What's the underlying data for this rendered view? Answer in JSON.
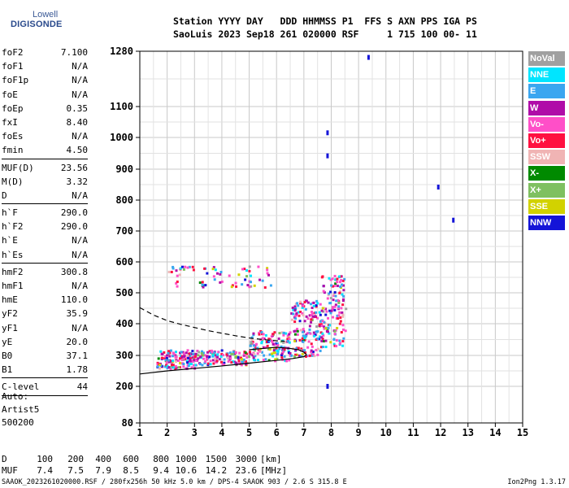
{
  "logo": {
    "top": "Lowell",
    "bottom": "DIGISONDE"
  },
  "header": {
    "line1": "Station YYYY DAY   DDD HHMMSS P1  FFS S AXN PPS IGA PS",
    "line2": "SaoLuis 2023 Sep18 261 020000 RSF     1 715 100 00- 11"
  },
  "params": [
    {
      "k": "foF2",
      "v": "7.100"
    },
    {
      "k": "foF1",
      "v": "N/A"
    },
    {
      "k": "foF1p",
      "v": "N/A"
    },
    {
      "k": "foE",
      "v": "N/A"
    },
    {
      "k": "foEp",
      "v": "0.35"
    },
    {
      "k": "fxI",
      "v": "8.40"
    },
    {
      "k": "foEs",
      "v": "N/A"
    },
    {
      "k": "fmin",
      "v": "4.50"
    },
    {
      "sep": true
    },
    {
      "k": "MUF(D)",
      "v": "23.56"
    },
    {
      "k": "M(D)",
      "v": "3.32"
    },
    {
      "k": "D",
      "v": "N/A"
    },
    {
      "sep": true
    },
    {
      "k": "h`F",
      "v": "290.0"
    },
    {
      "k": "h`F2",
      "v": "290.0"
    },
    {
      "k": "h`E",
      "v": "N/A"
    },
    {
      "k": "h`Es",
      "v": "N/A"
    },
    {
      "sep": true
    },
    {
      "k": "hmF2",
      "v": "300.8"
    },
    {
      "k": "hmF1",
      "v": "N/A"
    },
    {
      "k": "hmE",
      "v": "110.0"
    },
    {
      "k": "yF2",
      "v": "35.9"
    },
    {
      "k": "yF1",
      "v": "N/A"
    },
    {
      "k": "yE",
      "v": "20.0"
    },
    {
      "k": "B0",
      "v": "37.1"
    },
    {
      "k": "B1",
      "v": "1.78"
    },
    {
      "sep": true
    },
    {
      "k": "C-level",
      "v": "44"
    },
    {
      "sep": true
    }
  ],
  "auto": {
    "line1": "Auto:",
    "line2": "Artist5",
    "line3": "500200"
  },
  "legend": [
    {
      "label": "NoVal",
      "color": "#a0a0a0"
    },
    {
      "label": "NNE",
      "color": "#00e5ff"
    },
    {
      "label": "E",
      "color": "#3aa6f0"
    },
    {
      "label": "W",
      "color": "#b00ca8"
    },
    {
      "label": "Vo-",
      "color": "#ff4fc8"
    },
    {
      "label": "Vo+",
      "color": "#ff1040"
    },
    {
      "label": "SSW",
      "color": "#f0b4b4"
    },
    {
      "label": "X-",
      "color": "#008a00"
    },
    {
      "label": "X+",
      "color": "#7fc060"
    },
    {
      "label": "SSE",
      "color": "#d2d200"
    },
    {
      "label": "NNW",
      "color": "#1414d8"
    }
  ],
  "muf_table": {
    "d_label": "D",
    "d_values": [
      "100",
      "200",
      "400",
      "600",
      "800",
      "1000",
      "1500",
      "3000"
    ],
    "d_unit": "[km]",
    "muf_label": "MUF",
    "muf_values": [
      "7.4",
      "7.5",
      "7.9",
      "8.5",
      "9.4",
      "10.6",
      "14.2",
      "23.6"
    ],
    "muf_unit": "[MHz]"
  },
  "footer": {
    "left": "SAAOK_2023261020000.RSF / 280fx256h 50 kHz 5.0 km / DPS-4 SAAOK 903 / 2.6 S 315.8 E",
    "right": "Ion2Png 1.3.17"
  },
  "chart_data": {
    "type": "scatter",
    "x_ticks": [
      1,
      2,
      3,
      4,
      5,
      6,
      7,
      8,
      9,
      10,
      11,
      12,
      13,
      14,
      15
    ],
    "y_ticks": [
      80,
      200,
      300,
      400,
      500,
      600,
      700,
      800,
      900,
      1000,
      1100,
      1280
    ],
    "xlim": [
      1,
      15
    ],
    "ylim": [
      80,
      1280
    ],
    "y_scale": "nonlinear",
    "grid": true,
    "legend_position": "right",
    "trace_lower_ordinary": {
      "x": [
        1.0,
        2.0,
        3.0,
        4.0,
        5.0,
        6.0,
        6.6,
        7.0,
        7.1
      ],
      "y": [
        240,
        250,
        258,
        266,
        275,
        284,
        290,
        296,
        302
      ]
    },
    "trace_upper_ordinary": {
      "x": [
        7.1,
        7.0,
        6.8,
        6.5,
        6.0,
        5.5,
        5.0
      ],
      "y": [
        302,
        310,
        318,
        322,
        326,
        322,
        318
      ]
    },
    "dashed_profile": {
      "x": [
        1.0,
        1.5,
        2.0,
        2.5,
        3.0,
        3.5,
        4.0,
        4.5,
        5.0,
        5.5,
        6.0,
        6.3
      ],
      "y": [
        452,
        428,
        410,
        398,
        388,
        378,
        370,
        362,
        355,
        350,
        346,
        345
      ]
    },
    "echo_clusters": [
      {
        "x": [
          1.6,
          3.0
        ],
        "y": [
          260,
          320
        ],
        "density": 150
      },
      {
        "x": [
          3.0,
          5.0
        ],
        "y": [
          272,
          320
        ],
        "density": 130
      },
      {
        "x": [
          5.0,
          6.5
        ],
        "y": [
          285,
          380
        ],
        "density": 140
      },
      {
        "x": [
          6.5,
          7.6
        ],
        "y": [
          300,
          480
        ],
        "density": 160
      },
      {
        "x": [
          7.6,
          8.5
        ],
        "y": [
          330,
          560
        ],
        "density": 140
      },
      {
        "x": [
          2.0,
          5.8
        ],
        "y": [
          520,
          590
        ],
        "density": 70
      }
    ],
    "isolated_points": [
      {
        "x": 7.85,
        "y": 1015
      },
      {
        "x": 7.85,
        "y": 942
      },
      {
        "x": 7.85,
        "y": 200
      },
      {
        "x": 12.45,
        "y": 735
      },
      {
        "x": 11.9,
        "y": 842
      },
      {
        "x": 9.35,
        "y": 1260
      }
    ]
  }
}
